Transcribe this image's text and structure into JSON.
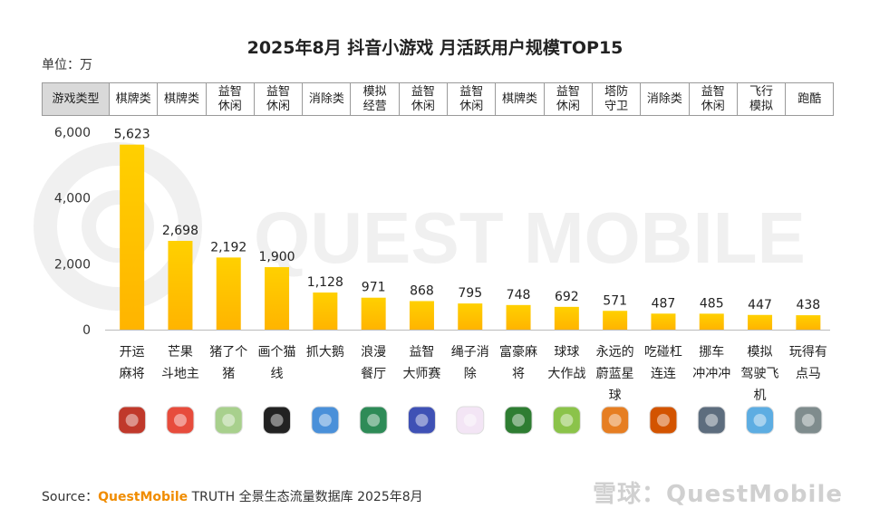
{
  "header": {
    "title": "2025年8月 抖音小游戏 月活跃用户规模TOP15",
    "unit": "单位：万"
  },
  "category_header": "游戏类型",
  "watermark": "QUEST MOBILE",
  "footer": {
    "source_prefix": "Source：",
    "source_brand": "QuestMobile",
    "source_rest": " TRUTH 全景生态流量数据库 2025年8月",
    "site": "雪球：QuestMobile"
  },
  "colors": {
    "bar_top": "#ffd000",
    "bar_bottom": "#ffb400",
    "brand": "#f08c00"
  },
  "chart_data": {
    "type": "bar",
    "title": "2025年8月 抖音小游戏 月活跃用户规模TOP15",
    "ylabel": "单位：万",
    "ylim": [
      0,
      6000
    ],
    "yticks": [
      "0",
      "2,000",
      "4,000",
      "6,000"
    ],
    "ytick_values": [
      0,
      2000,
      4000,
      6000
    ],
    "categories": [
      "开运麻将",
      "芒果斗地主",
      "猪了个猪",
      "画个猫线",
      "抓大鹅",
      "浪漫餐厅",
      "益智大师赛",
      "绳子消除",
      "富豪麻将",
      "球球大作战",
      "永远的蔚蓝星球",
      "吃碰杠连连",
      "挪车冲冲冲",
      "模拟驾驶飞机",
      "玩得有点马"
    ],
    "category_labels": [
      "开运\n麻将",
      "芒果\n斗地主",
      "猪了个\n猪",
      "画个猫\n线",
      "抓大鹅",
      "浪漫\n餐厅",
      "益智\n大师赛",
      "绳子消\n除",
      "富豪麻\n将",
      "球球\n大作战",
      "永远的\n蔚蓝星\n球",
      "吃碰杠\n连连",
      "挪车\n冲冲冲",
      "模拟\n驾驶飞\n机",
      "玩得有\n点马"
    ],
    "game_types": [
      "棋牌类",
      "棋牌类",
      "益智\n休闲",
      "益智\n休闲",
      "消除类",
      "模拟\n经营",
      "益智\n休闲",
      "益智\n休闲",
      "棋牌类",
      "益智\n休闲",
      "塔防\n守卫",
      "消除类",
      "益智\n休闲",
      "飞行\n模拟",
      "跑酷"
    ],
    "values": [
      5623,
      2698,
      2192,
      1900,
      1128,
      971,
      868,
      795,
      748,
      692,
      571,
      487,
      485,
      447,
      438
    ],
    "value_labels": [
      "5,623",
      "2,698",
      "2,192",
      "1,900",
      "1,128",
      "971",
      "868",
      "795",
      "748",
      "692",
      "571",
      "487",
      "485",
      "447",
      "438"
    ],
    "icons": [
      "mahjong-icon",
      "clown-icon",
      "pig-icon",
      "black-cat-icon",
      "goose-icon",
      "chef-girl-icon",
      "rocket-icon",
      "rope-dots-icon",
      "mahjong-icon",
      "green-ball-icon",
      "lion-icon",
      "mahjong-tile-icon",
      "traffic-car-icon",
      "airplane-icon",
      "runner-icon"
    ],
    "icon_colors": [
      "#c0392b",
      "#e74c3c",
      "#a8d08d",
      "#222222",
      "#4a90d9",
      "#2e8b57",
      "#3f51b5",
      "#f3e5f5",
      "#2e7d32",
      "#8bc34a",
      "#e67e22",
      "#d35400",
      "#5d6d7e",
      "#5dade2",
      "#7f8c8d"
    ]
  }
}
